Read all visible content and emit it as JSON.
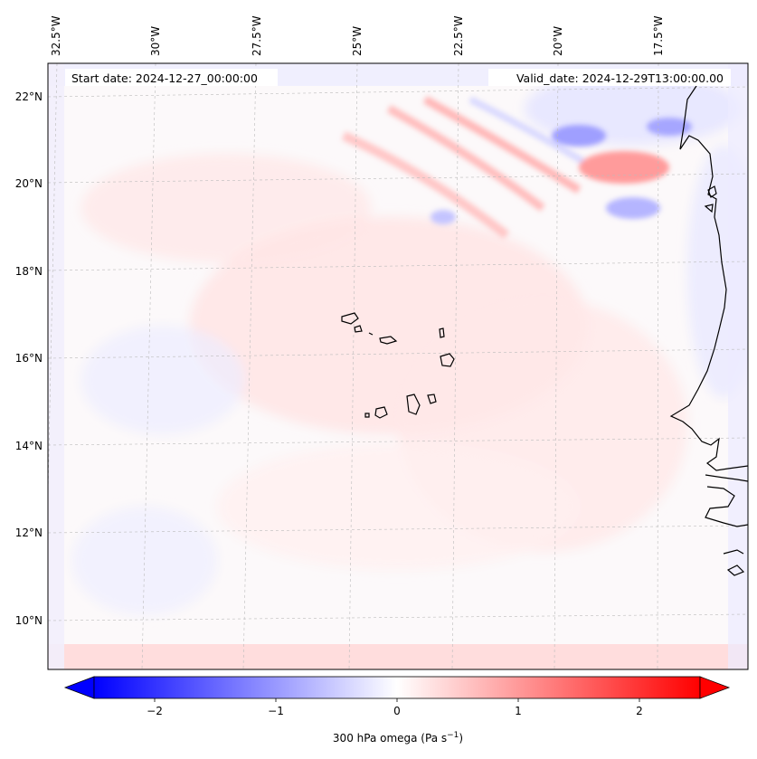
{
  "map": {
    "start_date": "Start date: 2024-12-27_00:00:00",
    "valid_date": "Valid_date: 2024-12-29T13:00:00.00",
    "lon_labels": [
      "32.5°W",
      "30°W",
      "27.5°W",
      "25°W",
      "22.5°W",
      "20°W",
      "17.5°W"
    ],
    "lat_labels": [
      "22°N",
      "20°N",
      "18°N",
      "16°N",
      "14°N",
      "12°N",
      "10°N"
    ],
    "field": "300 hPa omega"
  },
  "colorbar": {
    "label": "300 hPa omega (Pa s",
    "label_sup": "−1",
    "label_close": ")",
    "ticks": [
      "−2",
      "−1",
      "0",
      "1",
      "2"
    ],
    "tick_values": [
      -2,
      -1,
      0,
      1,
      2
    ],
    "range": [
      -2.5,
      2.5
    ],
    "min_color": "#0000ff",
    "mid_color": "#ffffff",
    "max_color": "#ff0000"
  },
  "colors": {
    "coastline": "#000000",
    "gridline": "#bbbbbb",
    "frame": "#000000"
  }
}
